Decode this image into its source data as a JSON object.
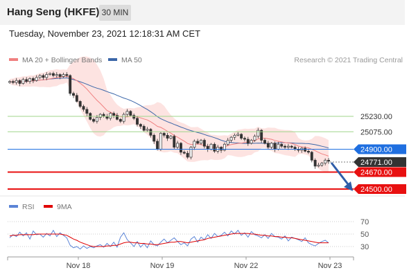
{
  "header": {
    "title": "Hang Seng (HKFE)",
    "timeframe": "30 MIN",
    "datetime": "Tuesday, November 23, 2021 12:18:31 AM CET"
  },
  "legend": {
    "items": [
      {
        "label": "MA 20 + Bollinger Bands",
        "color": "#f08080"
      },
      {
        "label": "MA 50",
        "color": "#3b66a8"
      }
    ],
    "credit": "Research © 2021 Trading Central"
  },
  "rsi_legend": {
    "items": [
      {
        "label": "RSI",
        "color": "#5b84d6"
      },
      {
        "label": "9MA",
        "color": "#e00000"
      }
    ]
  },
  "chart_data": [
    {
      "type": "candlestick",
      "ylim": [
        24430,
        25440
      ],
      "x_ticks": [
        "Nov 18",
        "Nov 19",
        "Nov 22",
        "Nov 23"
      ],
      "levels": [
        {
          "value": 25230,
          "label": "25230.00",
          "kind": "resistance",
          "color": "#9fd58a"
        },
        {
          "value": 25075,
          "label": "25075.00",
          "kind": "resistance",
          "color": "#9fd58a"
        },
        {
          "value": 24900,
          "label": "24900.00",
          "kind": "pivot",
          "color": "#1f6fe0"
        },
        {
          "value": 24771,
          "label": "24771.00",
          "kind": "last-price",
          "color": "#333333"
        },
        {
          "value": 24670,
          "label": "24670.00",
          "kind": "support",
          "color": "#e81010"
        },
        {
          "value": 24500,
          "label": "24500.00",
          "kind": "support",
          "color": "#e81010"
        }
      ],
      "prices": [
        25580,
        25570,
        25590,
        25560,
        25600,
        25580,
        25610,
        25590,
        25620,
        25640,
        25620,
        25650,
        25660,
        25640,
        25650,
        25630,
        25650,
        25640,
        25460,
        25440,
        25380,
        25330,
        25300,
        25260,
        25200,
        25180,
        25220,
        25250,
        25230,
        25210,
        25260,
        25240,
        25200,
        25180,
        25250,
        25280,
        25240,
        25210,
        25150,
        25130,
        25090,
        25100,
        25040,
        24980,
        24900,
        25060,
        25040,
        25010,
        25030,
        24920,
        24960,
        24870,
        24860,
        24820,
        24920,
        24980,
        24960,
        24990,
        24930,
        24900,
        24950,
        24880,
        24920,
        24890,
        24950,
        24990,
        25020,
        25040,
        25050,
        25010,
        25000,
        24960,
        24990,
        25030,
        25090,
        24990,
        24960,
        24920,
        24960,
        24900,
        24950,
        24930,
        24920,
        24930,
        24920,
        24900,
        24890,
        24910,
        24880,
        24870,
        24790,
        24730,
        24740,
        24760,
        24790,
        24780
      ]
    },
    {
      "type": "line",
      "title": "",
      "ylim": [
        20,
        78
      ],
      "y_ticks": [
        70,
        50,
        30
      ],
      "x_ticks": [
        "Nov 18",
        "Nov 19",
        "Nov 22",
        "Nov 23"
      ],
      "series": [
        {
          "name": "RSI",
          "values": [
            44,
            49,
            46,
            53,
            47,
            52,
            42,
            55,
            49,
            50,
            45,
            51,
            47,
            56,
            46,
            52,
            48,
            44,
            32,
            28,
            30,
            26,
            31,
            27,
            30,
            28,
            31,
            33,
            29,
            35,
            30,
            37,
            29,
            45,
            52,
            41,
            36,
            30,
            38,
            29,
            35,
            28,
            39,
            33,
            31,
            37,
            42,
            36,
            40,
            44,
            38,
            33,
            36,
            31,
            42,
            46,
            37,
            45,
            41,
            49,
            43,
            51,
            46,
            48,
            53,
            47,
            55,
            50,
            56,
            48,
            52,
            45,
            54,
            49,
            47,
            44,
            49,
            43,
            51,
            46,
            45,
            42,
            47,
            39,
            45,
            43,
            41,
            38,
            44,
            36,
            33,
            31,
            35,
            38,
            40,
            36
          ]
        },
        {
          "name": "9MA",
          "values": [
            47,
            48,
            48,
            49,
            49,
            49,
            49,
            49,
            50,
            50,
            50,
            50,
            50,
            50,
            50,
            50,
            49,
            48,
            45,
            42,
            40,
            37,
            35,
            33,
            31,
            30,
            30,
            30,
            30,
            31,
            31,
            32,
            32,
            34,
            36,
            37,
            37,
            36,
            36,
            35,
            35,
            34,
            34,
            33,
            33,
            34,
            35,
            36,
            37,
            37,
            38,
            38,
            37,
            36,
            37,
            38,
            39,
            40,
            41,
            43,
            44,
            45,
            46,
            47,
            48,
            49,
            50,
            51,
            51,
            51,
            51,
            51,
            50,
            50,
            49,
            48,
            48,
            47,
            47,
            46,
            46,
            45,
            45,
            44,
            44,
            43,
            42,
            41,
            40,
            39,
            38,
            37,
            36,
            36,
            36,
            36
          ]
        }
      ]
    }
  ]
}
